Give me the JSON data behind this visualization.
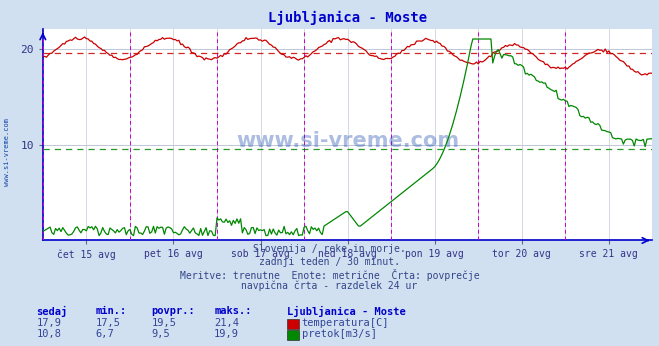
{
  "title": "Ljubljanica - Moste",
  "title_color": "#0000cc",
  "bg_color": "#d0e0f0",
  "plot_bg_color": "#ffffff",
  "grid_color": "#c0c8d8",
  "border_color": "#0000cc",
  "x_tick_labels": [
    "čet 15 avg",
    "pet 16 avg",
    "sob 17 avg",
    "ned 18 avg",
    "pon 19 avg",
    "tor 20 avg",
    "sre 21 avg"
  ],
  "x_tick_positions": [
    24,
    72,
    120,
    168,
    216,
    264,
    312
  ],
  "vline_positions": [
    0,
    48,
    96,
    144,
    192,
    240,
    288,
    336
  ],
  "y_ticks": [
    10,
    20
  ],
  "y_range": [
    0,
    22
  ],
  "temp_avg": 19.5,
  "flow_avg": 9.5,
  "subtitle_lines": [
    "Slovenija / reke in morje.",
    "zadnji teden / 30 minut.",
    "Meritve: trenutne  Enote: metrične  Črta: povprečje",
    "navpična črta - razdelek 24 ur"
  ],
  "table_header_labels": [
    "sedaj",
    "min.:",
    "povpr.:",
    "maks.:"
  ],
  "table_title": "Ljubljanica - Moste",
  "table_row1": [
    "17,9",
    "17,5",
    "19,5",
    "21,4",
    "temperatura[C]"
  ],
  "table_row2": [
    "10,8",
    "6,7",
    "9,5",
    "19,9",
    "pretok[m3/s]"
  ],
  "temp_color": "#cc0000",
  "flow_color": "#008800",
  "watermark": "www.si-vreme.com",
  "n_points": 337,
  "left_label": "www.si-vreme.com"
}
